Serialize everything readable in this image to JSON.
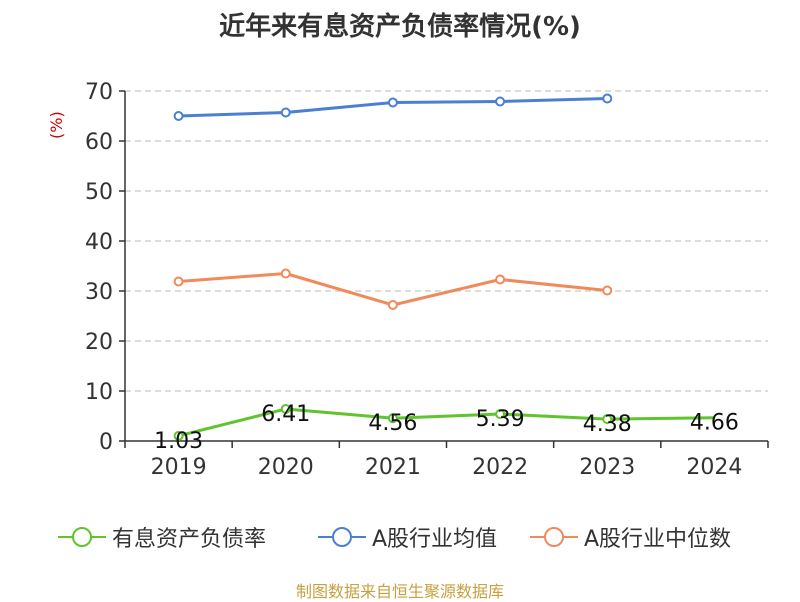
{
  "title": "近年来有息资产负债率情况(%)",
  "source": "制图数据来自恒生聚源数据库",
  "chart_data": {
    "type": "line",
    "title": "近年来有息资产负债率情况(%)",
    "ylabel": "(%)",
    "xlabel": "",
    "categories": [
      "2019",
      "2020",
      "2021",
      "2022",
      "2023",
      "2024"
    ],
    "ylim": [
      0,
      70
    ],
    "yticks": [
      0,
      10,
      20,
      30,
      40,
      50,
      60,
      70
    ],
    "grid": "horizontal-dashed",
    "legend_position": "bottom",
    "series": [
      {
        "name": "有息资产负债率",
        "color": "#5fc42d",
        "values": [
          1.03,
          6.41,
          4.56,
          5.39,
          4.38,
          4.66
        ],
        "labels": [
          "1.03",
          "6.41",
          "4.56",
          "5.39",
          "4.38",
          "4.66"
        ]
      },
      {
        "name": "A股行业均值",
        "color": "#4a7fd4",
        "values": [
          65.0,
          65.7,
          67.7,
          67.9,
          68.5,
          null
        ]
      },
      {
        "name": "A股行业中位数",
        "color": "#f08a5a",
        "values": [
          31.9,
          33.5,
          27.2,
          32.3,
          30.1,
          null
        ]
      }
    ]
  }
}
